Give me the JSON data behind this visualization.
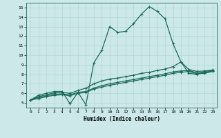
{
  "xlabel": "Humidex (Indice chaleur)",
  "background_color": "#cce8e8",
  "line_color": "#1a6b5a",
  "grid_color": "#aad4d4",
  "xlim": [
    -0.5,
    23.5
  ],
  "ylim": [
    4.5,
    15.5
  ],
  "xticks": [
    0,
    1,
    2,
    3,
    4,
    5,
    6,
    7,
    8,
    9,
    10,
    11,
    12,
    13,
    14,
    15,
    16,
    17,
    18,
    19,
    20,
    21,
    22,
    23
  ],
  "yticks": [
    5,
    6,
    7,
    8,
    9,
    10,
    11,
    12,
    13,
    14,
    15
  ],
  "main_y": [
    5.3,
    5.8,
    6.0,
    6.2,
    6.2,
    4.9,
    6.1,
    4.8,
    9.2,
    10.5,
    13.0,
    12.4,
    12.5,
    13.3,
    14.3,
    15.1,
    14.6,
    13.8,
    11.2,
    9.3,
    8.1,
    8.0,
    8.3,
    8.4
  ],
  "line2_y": [
    5.3,
    5.65,
    5.85,
    6.05,
    6.1,
    6.0,
    6.3,
    6.55,
    7.0,
    7.3,
    7.5,
    7.6,
    7.75,
    7.9,
    8.1,
    8.2,
    8.4,
    8.55,
    8.8,
    9.3,
    8.5,
    8.3,
    8.35,
    8.45
  ],
  "line3_y": [
    5.3,
    5.55,
    5.75,
    5.9,
    5.95,
    5.85,
    6.1,
    6.2,
    6.55,
    6.8,
    7.0,
    7.15,
    7.3,
    7.45,
    7.6,
    7.75,
    7.9,
    8.05,
    8.25,
    8.35,
    8.4,
    8.15,
    8.2,
    8.35
  ],
  "line4_y": [
    5.3,
    5.45,
    5.65,
    5.8,
    5.85,
    5.75,
    6.0,
    6.1,
    6.45,
    6.65,
    6.85,
    7.0,
    7.15,
    7.3,
    7.45,
    7.6,
    7.75,
    7.9,
    8.1,
    8.2,
    8.3,
    8.05,
    8.1,
    8.3
  ]
}
